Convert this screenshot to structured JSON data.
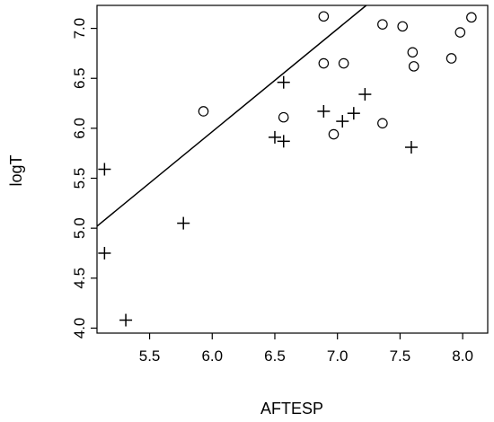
{
  "chart_data": {
    "type": "scatter",
    "xlabel": "AFTESP",
    "ylabel": "logT",
    "xlim": [
      5.08,
      8.2
    ],
    "ylim": [
      3.95,
      7.23
    ],
    "x_ticks": [
      "5.5",
      "6.0",
      "6.5",
      "7.0",
      "7.5",
      "8.0"
    ],
    "y_ticks": [
      "4.0",
      "4.5",
      "5.0",
      "5.5",
      "6.0",
      "6.5",
      "7.0"
    ],
    "grid": false,
    "legend": "none",
    "series": [
      {
        "marker": "circle",
        "points": [
          {
            "x": 5.93,
            "y": 6.17
          },
          {
            "x": 6.57,
            "y": 6.11
          },
          {
            "x": 6.89,
            "y": 7.12
          },
          {
            "x": 6.89,
            "y": 6.65
          },
          {
            "x": 6.97,
            "y": 5.94
          },
          {
            "x": 7.05,
            "y": 6.65
          },
          {
            "x": 7.36,
            "y": 7.04
          },
          {
            "x": 7.36,
            "y": 6.05
          },
          {
            "x": 7.52,
            "y": 7.02
          },
          {
            "x": 7.6,
            "y": 6.76
          },
          {
            "x": 7.61,
            "y": 6.62
          },
          {
            "x": 7.91,
            "y": 6.7
          },
          {
            "x": 7.98,
            "y": 6.96
          },
          {
            "x": 8.07,
            "y": 7.11
          }
        ]
      },
      {
        "marker": "plus",
        "points": [
          {
            "x": 5.14,
            "y": 5.59
          },
          {
            "x": 5.14,
            "y": 4.75
          },
          {
            "x": 5.31,
            "y": 4.08
          },
          {
            "x": 5.77,
            "y": 5.05
          },
          {
            "x": 6.5,
            "y": 5.91
          },
          {
            "x": 6.57,
            "y": 5.87
          },
          {
            "x": 6.57,
            "y": 6.46
          },
          {
            "x": 6.89,
            "y": 6.17
          },
          {
            "x": 7.04,
            "y": 6.07
          },
          {
            "x": 7.13,
            "y": 6.15
          },
          {
            "x": 7.22,
            "y": 6.34
          },
          {
            "x": 7.59,
            "y": 5.81
          }
        ]
      }
    ],
    "line": {
      "x1": 5.08,
      "y1": 5.02,
      "x2": 7.23,
      "y2": 7.23
    }
  }
}
